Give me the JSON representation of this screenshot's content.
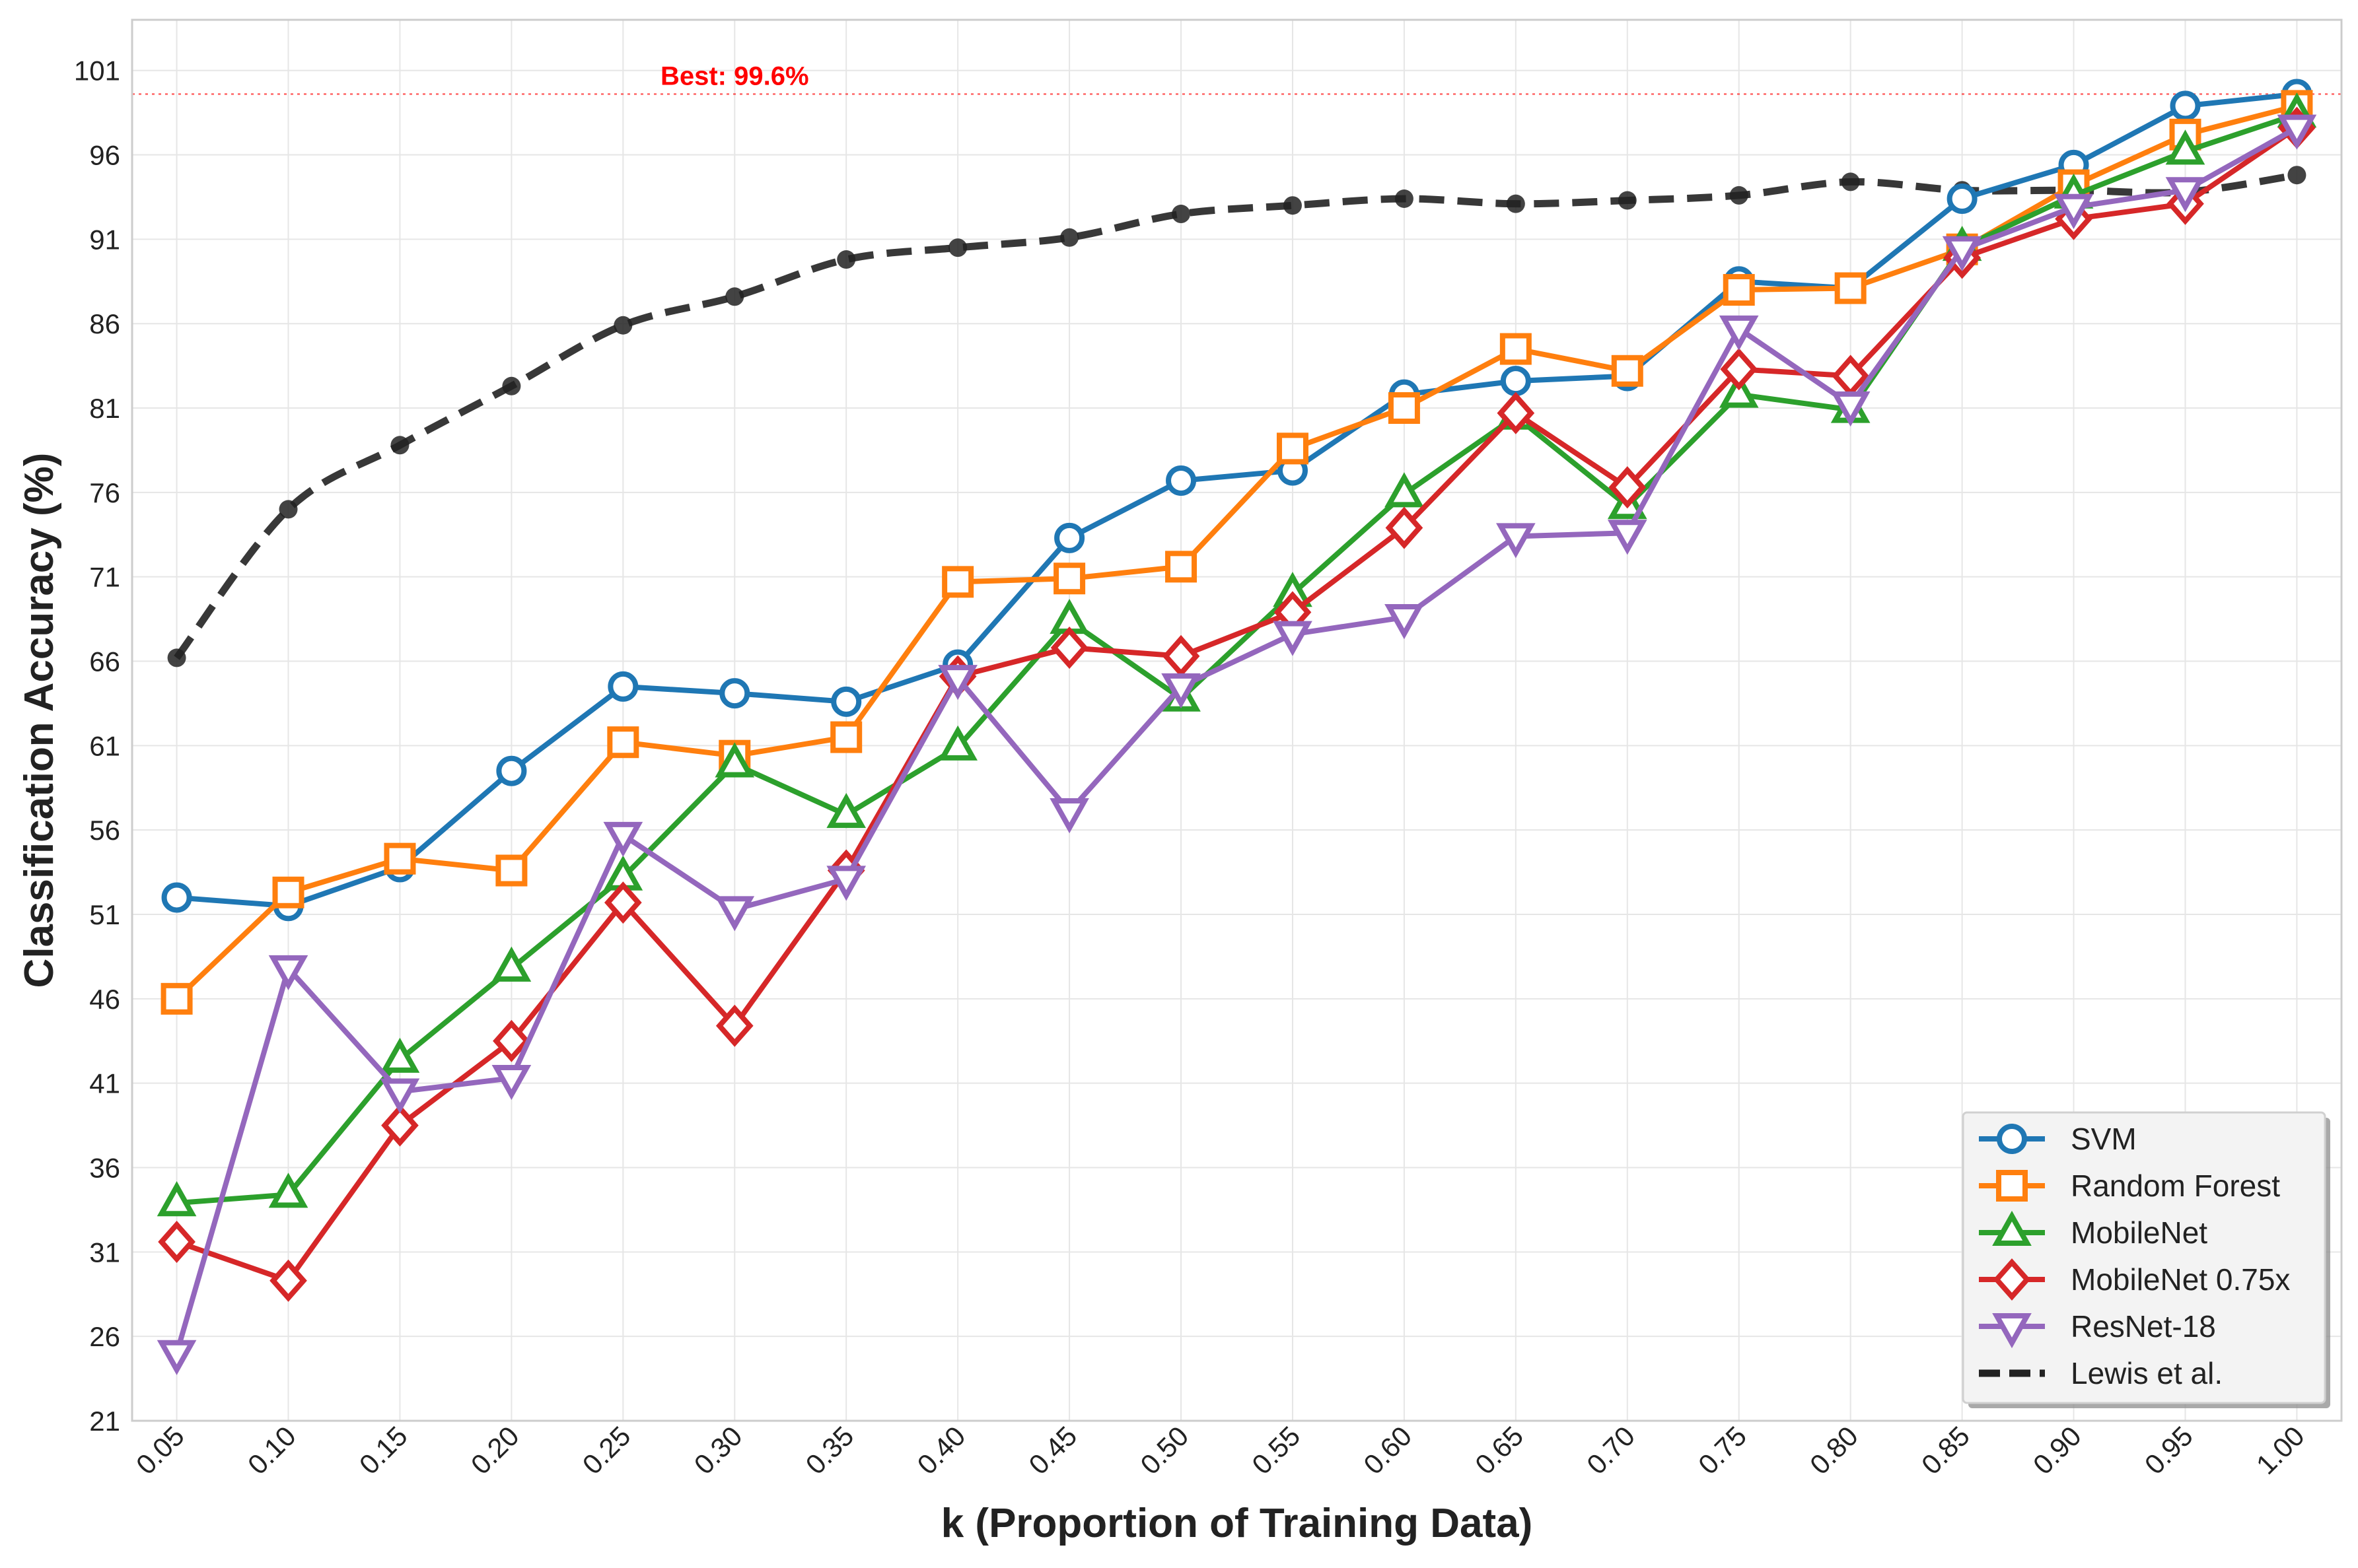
{
  "chart_data": {
    "type": "line",
    "title": "",
    "xlabel": "k (Proportion of Training Data)",
    "ylabel": "Classification Accuracy (%)",
    "xlim": [
      0.03,
      1.02
    ],
    "ylim": [
      21,
      104
    ],
    "x": [
      0.05,
      0.1,
      0.15,
      0.2,
      0.25,
      0.3,
      0.35,
      0.4,
      0.45,
      0.5,
      0.55,
      0.6,
      0.65,
      0.7,
      0.75,
      0.8,
      0.85,
      0.9,
      0.95,
      1.0
    ],
    "x_tick_labels": [
      "0.05",
      "0.10",
      "0.15",
      "0.20",
      "0.25",
      "0.30",
      "0.35",
      "0.40",
      "0.45",
      "0.50",
      "0.55",
      "0.60",
      "0.65",
      "0.70",
      "0.75",
      "0.80",
      "0.85",
      "0.90",
      "0.95",
      "1.00"
    ],
    "y_ticks": [
      21,
      26,
      31,
      36,
      41,
      46,
      51,
      56,
      61,
      66,
      71,
      76,
      81,
      86,
      91,
      96,
      101
    ],
    "y_tick_labels": [
      "21",
      "26",
      "31",
      "36",
      "41",
      "46",
      "51",
      "56",
      "61",
      "66",
      "71",
      "76",
      "81",
      "86",
      "91",
      "96",
      "101"
    ],
    "grid": true,
    "legend_position": "lower-right",
    "series": [
      {
        "name": "SVM",
        "color": "#1f77b4",
        "marker": "circle",
        "dashed": false,
        "values": [
          52.0,
          51.5,
          53.8,
          59.5,
          64.5,
          64.1,
          63.6,
          65.8,
          73.3,
          76.7,
          77.3,
          81.8,
          82.6,
          82.9,
          88.5,
          88.1,
          93.4,
          95.4,
          98.9,
          99.6
        ]
      },
      {
        "name": "Random Forest",
        "color": "#ff7f0e",
        "marker": "square",
        "dashed": false,
        "values": [
          46.0,
          52.3,
          54.3,
          53.6,
          61.2,
          60.4,
          61.5,
          70.7,
          70.9,
          71.6,
          78.6,
          81.0,
          84.5,
          83.2,
          88.0,
          88.1,
          90.4,
          94.2,
          97.2,
          98.9
        ]
      },
      {
        "name": "MobileNet",
        "color": "#2ca02c",
        "marker": "triangle-up",
        "dashed": false,
        "values": [
          33.9,
          34.4,
          42.4,
          47.8,
          53.2,
          59.9,
          56.9,
          60.9,
          68.4,
          63.8,
          70.0,
          75.9,
          80.5,
          75.2,
          81.8,
          80.9,
          90.5,
          93.6,
          96.2,
          98.4
        ]
      },
      {
        "name": "MobileNet 0.75x",
        "color": "#d62728",
        "marker": "diamond",
        "dashed": false,
        "values": [
          31.6,
          29.3,
          38.5,
          43.5,
          51.7,
          44.4,
          53.6,
          65.1,
          66.8,
          66.3,
          68.9,
          73.9,
          80.7,
          76.3,
          83.3,
          82.9,
          89.9,
          92.2,
          93.1,
          97.6
        ]
      },
      {
        "name": "ResNet-18",
        "color": "#9467bd",
        "marker": "triangle-down",
        "dashed": false,
        "values": [
          25.0,
          47.8,
          40.5,
          41.3,
          55.7,
          51.3,
          53.1,
          65.0,
          57.1,
          64.5,
          67.6,
          68.6,
          73.4,
          73.6,
          85.7,
          81.2,
          90.4,
          92.9,
          93.9,
          97.6
        ]
      },
      {
        "name": "Lewis et al.",
        "color": "#222222",
        "marker": "dot",
        "dashed": true,
        "values": [
          66.2,
          75.0,
          78.8,
          82.3,
          85.9,
          87.6,
          89.8,
          90.5,
          91.1,
          92.5,
          93.0,
          93.4,
          93.1,
          93.3,
          93.6,
          94.4,
          93.9,
          93.9,
          93.8,
          94.8
        ]
      }
    ],
    "annotations": [
      {
        "text": "Best: 99.6%",
        "x": 0.3,
        "y": 99.6,
        "color": "#ff0000"
      }
    ]
  }
}
